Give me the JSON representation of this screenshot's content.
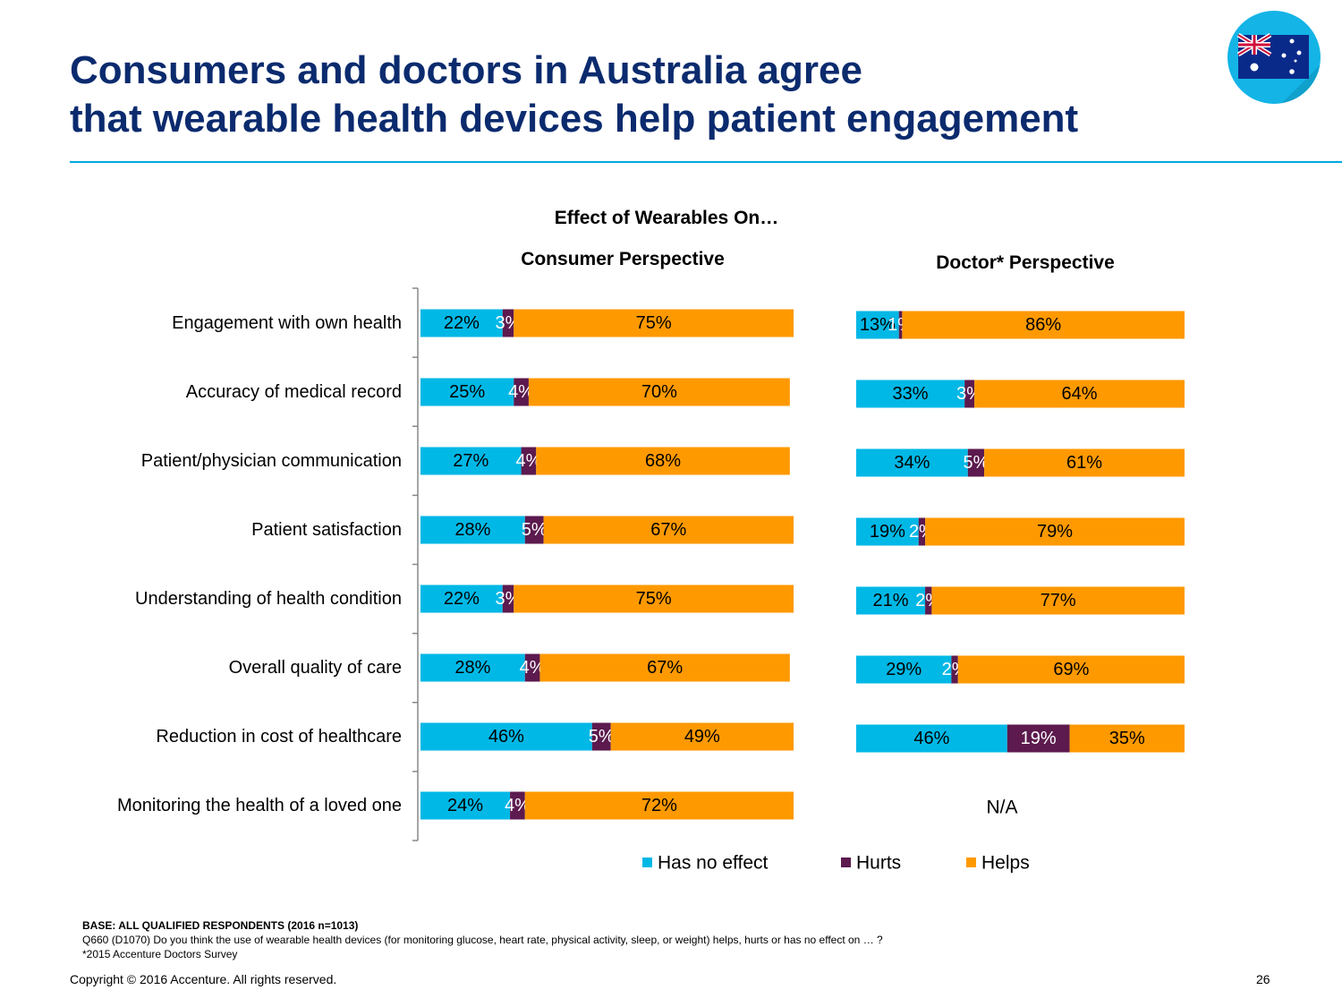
{
  "slide": {
    "title_line1": "Consumers and doctors in Australia agree",
    "title_line2": "that wearable health devices help patient engagement",
    "page_number": "26",
    "copyright": "Copyright © 2016 Accenture. All rights reserved.",
    "flag_icon": "australia-flag-icon"
  },
  "footnotes": {
    "base": "BASE: ALL QUALIFIED RESPONDENTS (2016 n=1013)",
    "question": "Q660 (D1070)  Do you think the use of wearable health devices (for monitoring glucose, heart rate, physical activity, sleep, or weight) helps, hurts or has no effect on … ?",
    "source": "*2015 Accenture Doctors Survey"
  },
  "colors": {
    "no_effect": "#00b8e6",
    "hurts": "#5c1a4e",
    "helps": "#ff9900",
    "title": "#0b2b6e",
    "rule": "#00a9e0"
  },
  "chart_data": {
    "type": "bar",
    "orientation": "horizontal",
    "stacked": true,
    "title": "Effect of Wearables On…",
    "categories": [
      "Engagement with own health",
      "Accuracy of medical record",
      "Patient/physician communication",
      "Patient satisfaction ",
      "Understanding of health condition",
      "Overall quality of care",
      "Reduction in cost of healthcare",
      "Monitoring the health of a loved one"
    ],
    "legend": [
      "Has no effect",
      "Hurts",
      "Helps"
    ],
    "legend_position": "bottom",
    "xlim": [
      0,
      100
    ],
    "panels": [
      {
        "title": "Consumer Perspective",
        "series": [
          {
            "name": "Has no effect",
            "values": [
              22,
              25,
              27,
              28,
              22,
              28,
              46,
              24
            ]
          },
          {
            "name": "Hurts",
            "values": [
              3,
              4,
              4,
              5,
              3,
              4,
              5,
              4
            ]
          },
          {
            "name": "Helps",
            "values": [
              75,
              70,
              68,
              67,
              75,
              67,
              49,
              72
            ]
          }
        ]
      },
      {
        "title": "Doctor* Perspective",
        "series": [
          {
            "name": "Has no effect",
            "values": [
              13,
              33,
              34,
              19,
              21,
              29,
              46,
              null
            ]
          },
          {
            "name": "Hurts",
            "values": [
              1,
              3,
              5,
              2,
              2,
              2,
              19,
              null
            ]
          },
          {
            "name": "Helps",
            "values": [
              86,
              64,
              61,
              79,
              77,
              69,
              35,
              null
            ]
          }
        ],
        "missing_label": "N/A"
      }
    ]
  }
}
